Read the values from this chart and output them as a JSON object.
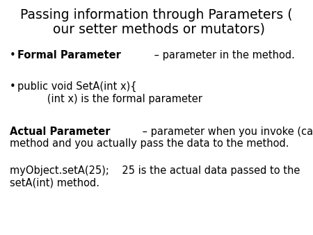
{
  "title_line1": "Passing information through Parameters (",
  "title_line2": " our setter methods or mutators)",
  "background_color": "#ffffff",
  "title_fontsize": 13.5,
  "body_fontsize": 10.5,
  "body_color": "#000000",
  "bullet1_bold": "Formal Parameter",
  "bullet1_rest": " – parameter in the method.",
  "bullet2_text": "public void SetA(int x){",
  "bullet2_sub": "      (int x) is the formal parameter",
  "para1_bold": "Actual Parameter",
  "para1_rest": " – parameter when you invoke (call) the\nmethod and you actually pass the data to the method.",
  "para2_text": "myObject.setA(25);    25 is the actual data passed to the\nsetA(int) method."
}
